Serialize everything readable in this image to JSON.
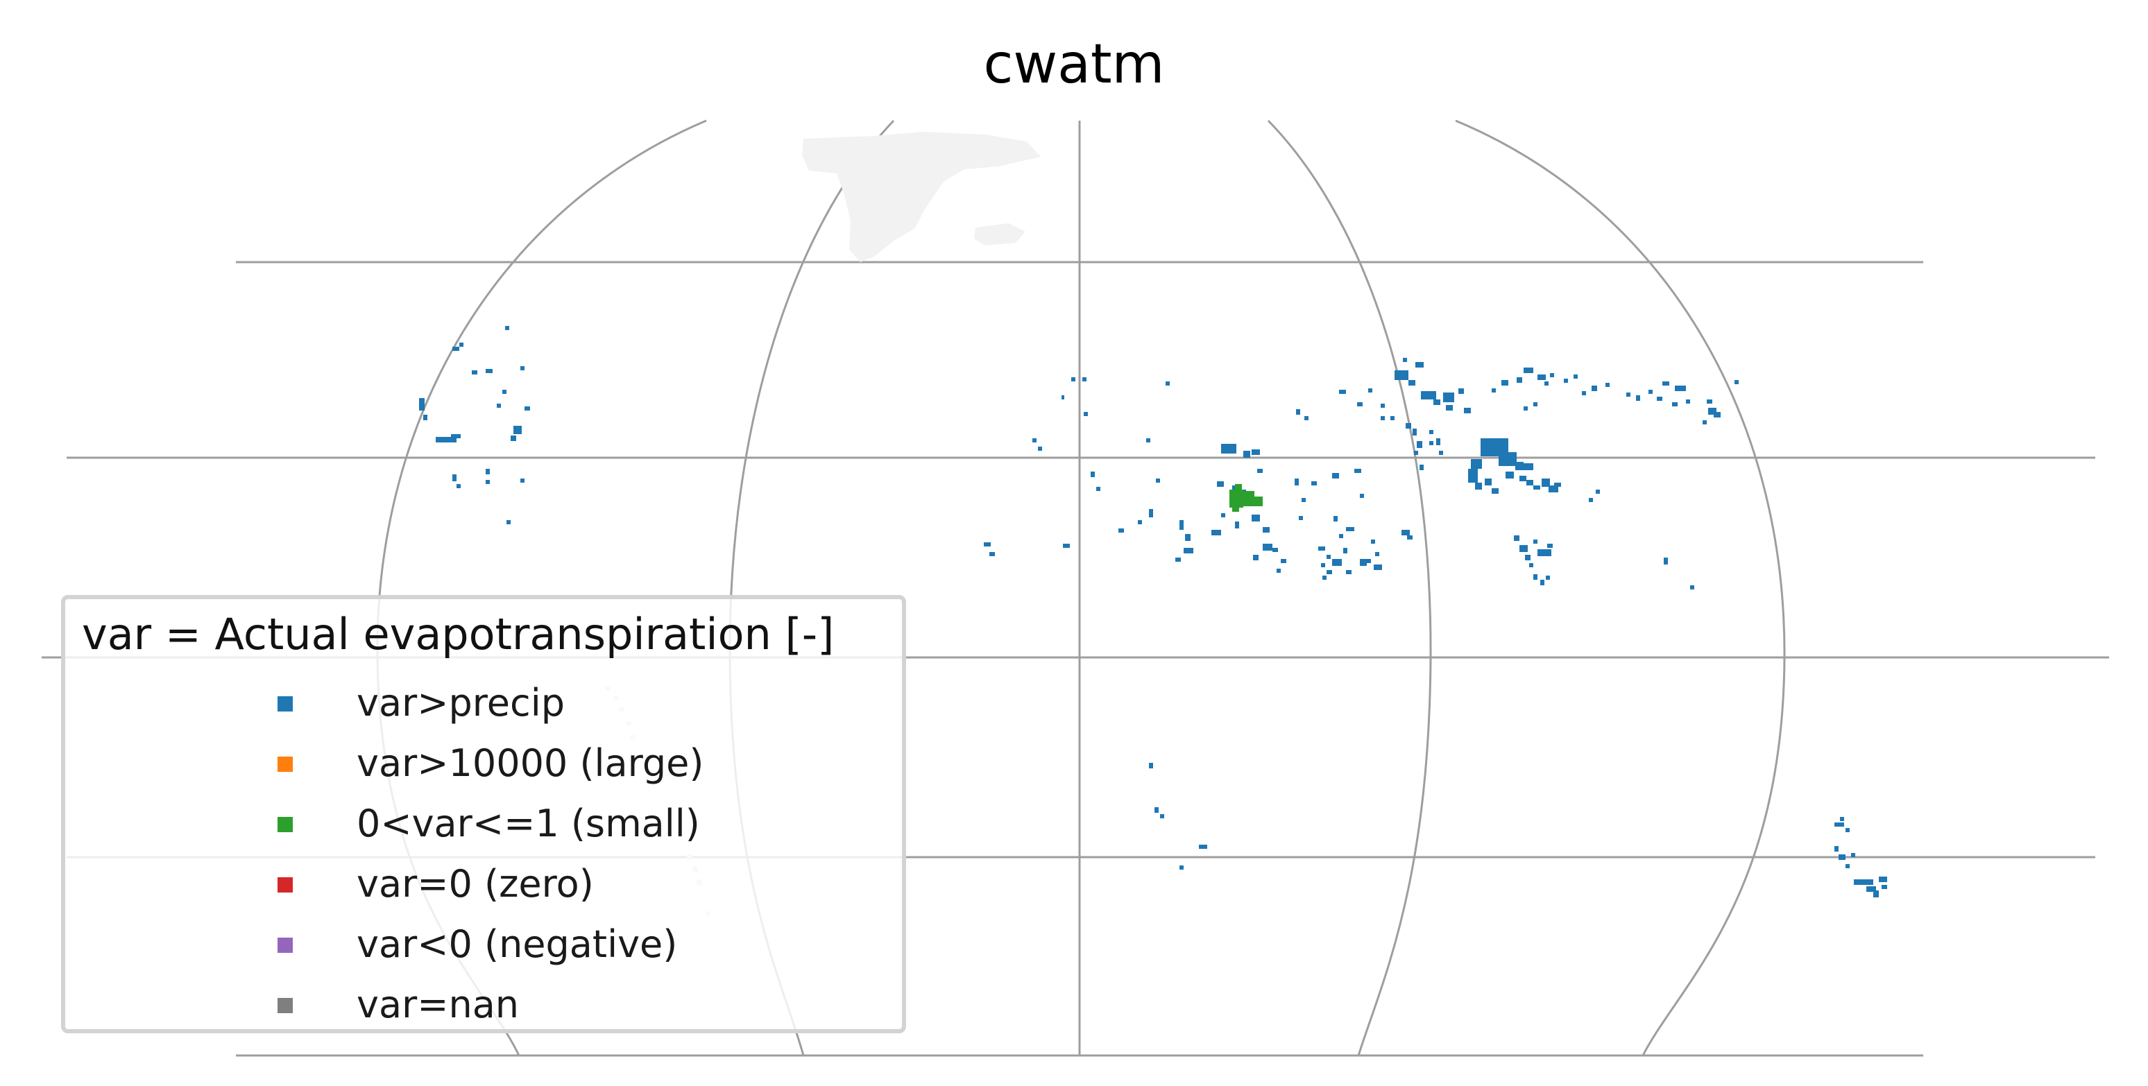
{
  "title": "cwatm",
  "projection": "robinson-like world map, zoomed",
  "colors": {
    "graticule": "#9e9e9e",
    "land_background": "#f2f2f2",
    "legend_border": "#d3d3d3"
  },
  "legend": {
    "title": "var = Actual evapotranspiration [-]",
    "items": [
      {
        "label": "var>precip",
        "color": "#1f77b4"
      },
      {
        "label": "var>10000 (large)",
        "color": "#ff7f0e"
      },
      {
        "label": "0<var<=1 (small)",
        "color": "#2ca02c"
      },
      {
        "label": "var=0 (zero)",
        "color": "#d62728"
      },
      {
        "label": "var<0 (negative)",
        "color": "#9467bd"
      },
      {
        "label": "var=nan",
        "color": "#7f7f7f"
      }
    ]
  }
}
